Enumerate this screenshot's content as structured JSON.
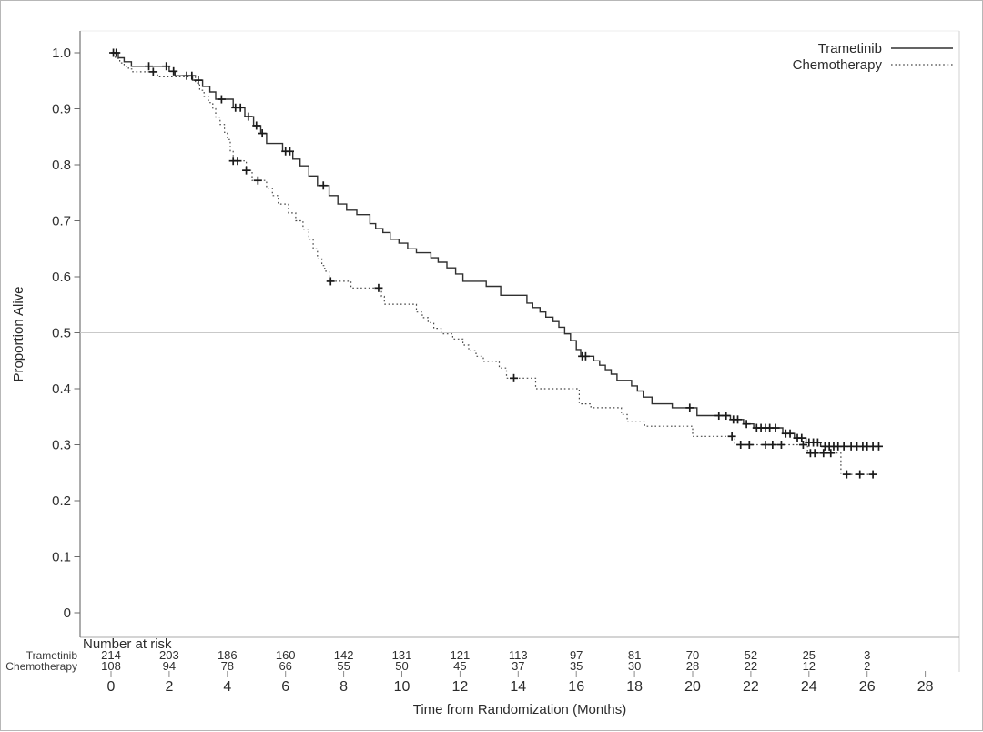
{
  "figure": {
    "y_axis": {
      "title": "Proportion Alive",
      "tick_labels": [
        "1.0",
        "0.9",
        "0.8",
        "0.7",
        "0.6",
        "0.5",
        "0.4",
        "0.3",
        "0.2",
        "0.1",
        "0"
      ]
    },
    "x_axis": {
      "title": "Time from Randomization (Months)",
      "tick_labels": [
        "0",
        "2",
        "4",
        "6",
        "8",
        "10",
        "12",
        "14",
        "16",
        "18",
        "20",
        "22",
        "24",
        "26",
        "28"
      ]
    }
  },
  "legend": {
    "items": [
      {
        "label": "Trametinib",
        "line_style": "solid"
      },
      {
        "label": "Chemotherapy",
        "line_style": "dotted"
      }
    ]
  },
  "risk_table": {
    "title": "Number at risk",
    "time_points": [
      0,
      2,
      4,
      6,
      8,
      10,
      12,
      14,
      16,
      18,
      20,
      22,
      24,
      26
    ],
    "rows": [
      {
        "label": "Trametinib",
        "values": [
          214,
          203,
          186,
          160,
          142,
          131,
          121,
          113,
          97,
          81,
          70,
          52,
          25,
          3
        ]
      },
      {
        "label": "Chemotherapy",
        "values": [
          108,
          94,
          78,
          66,
          55,
          50,
          45,
          37,
          35,
          30,
          28,
          22,
          12,
          2
        ]
      }
    ]
  },
  "colors": {
    "trametinib_line": "#303030",
    "chemotherapy_line": "#474747",
    "censor_mark": "#1a1a1a",
    "reference_line": "#c9c9c9",
    "axis_line": "#5a5a5a",
    "border_line": "#d2d2d2",
    "tick_line": "#8a8a8a"
  },
  "chart_data": {
    "type": "line",
    "subtype": "kaplan_meier_step",
    "title": "",
    "xlabel": "Time from Randomization (Months)",
    "ylabel": "Proportion Alive",
    "xlim": [
      0,
      28
    ],
    "ylim": [
      0,
      1.0
    ],
    "x_ticks": [
      0,
      2,
      4,
      6,
      8,
      10,
      12,
      14,
      16,
      18,
      20,
      22,
      24,
      26,
      28
    ],
    "y_ticks": [
      1.0,
      0.9,
      0.8,
      0.7,
      0.6,
      0.5,
      0.4,
      0.3,
      0.2,
      0.1,
      0
    ],
    "grid": false,
    "legend_position": "top-right",
    "reference_line_y": 0.5,
    "series": [
      {
        "name": "Trametinib",
        "line": "solid",
        "start": [
          0,
          1.0
        ],
        "steps": [
          [
            0.25,
            0.991
          ],
          [
            0.45,
            0.984
          ],
          [
            0.7,
            0.976
          ],
          [
            2.0,
            0.967
          ],
          [
            2.2,
            0.959
          ],
          [
            2.8,
            0.951
          ],
          [
            3.15,
            0.94
          ],
          [
            3.4,
            0.93
          ],
          [
            3.6,
            0.917
          ],
          [
            4.2,
            0.902
          ],
          [
            4.6,
            0.886
          ],
          [
            4.9,
            0.87
          ],
          [
            5.15,
            0.856
          ],
          [
            5.35,
            0.838
          ],
          [
            5.9,
            0.824
          ],
          [
            6.25,
            0.81
          ],
          [
            6.5,
            0.798
          ],
          [
            6.8,
            0.78
          ],
          [
            7.1,
            0.763
          ],
          [
            7.5,
            0.745
          ],
          [
            7.8,
            0.73
          ],
          [
            8.1,
            0.719
          ],
          [
            8.45,
            0.711
          ],
          [
            8.9,
            0.695
          ],
          [
            9.1,
            0.686
          ],
          [
            9.35,
            0.679
          ],
          [
            9.6,
            0.667
          ],
          [
            9.9,
            0.66
          ],
          [
            10.2,
            0.65
          ],
          [
            10.5,
            0.643
          ],
          [
            11.0,
            0.634
          ],
          [
            11.25,
            0.626
          ],
          [
            11.55,
            0.616
          ],
          [
            11.85,
            0.605
          ],
          [
            12.1,
            0.592
          ],
          [
            12.9,
            0.583
          ],
          [
            13.4,
            0.567
          ],
          [
            14.3,
            0.553
          ],
          [
            14.5,
            0.545
          ],
          [
            14.75,
            0.537
          ],
          [
            14.95,
            0.528
          ],
          [
            15.2,
            0.52
          ],
          [
            15.4,
            0.51
          ],
          [
            15.6,
            0.498
          ],
          [
            15.8,
            0.486
          ],
          [
            16.0,
            0.47
          ],
          [
            16.15,
            0.458
          ],
          [
            16.6,
            0.45
          ],
          [
            16.8,
            0.442
          ],
          [
            17.0,
            0.434
          ],
          [
            17.2,
            0.426
          ],
          [
            17.4,
            0.415
          ],
          [
            17.9,
            0.405
          ],
          [
            18.1,
            0.396
          ],
          [
            18.3,
            0.385
          ],
          [
            18.6,
            0.373
          ],
          [
            19.3,
            0.366
          ],
          [
            20.15,
            0.352
          ],
          [
            21.3,
            0.345
          ],
          [
            21.75,
            0.337
          ],
          [
            22.1,
            0.33
          ],
          [
            23.1,
            0.32
          ],
          [
            23.5,
            0.312
          ],
          [
            23.9,
            0.304
          ],
          [
            24.4,
            0.297
          ]
        ],
        "end_time": 26.45,
        "censor_times": [
          0.08,
          0.18,
          1.3,
          1.9,
          2.15,
          2.6,
          2.78,
          3.0,
          3.8,
          4.28,
          4.45,
          4.72,
          5.0,
          5.2,
          6.0,
          6.15,
          7.3,
          16.2,
          16.32,
          19.9,
          20.9,
          21.15,
          21.4,
          21.55,
          21.85,
          22.2,
          22.35,
          22.5,
          22.65,
          22.85,
          23.2,
          23.35,
          23.6,
          23.75,
          24.0,
          24.15,
          24.3,
          24.55,
          24.7,
          24.85,
          25.0,
          25.2,
          25.45,
          25.65,
          25.85,
          26.0,
          26.2,
          26.4
        ]
      },
      {
        "name": "Chemotherapy",
        "line": "dotted",
        "start": [
          0,
          1.0
        ],
        "steps": [
          [
            0.15,
            0.99
          ],
          [
            0.3,
            0.982
          ],
          [
            0.45,
            0.976
          ],
          [
            0.6,
            0.971
          ],
          [
            0.75,
            0.966
          ],
          [
            1.6,
            0.957
          ],
          [
            2.9,
            0.946
          ],
          [
            3.05,
            0.933
          ],
          [
            3.2,
            0.922
          ],
          [
            3.35,
            0.911
          ],
          [
            3.5,
            0.9
          ],
          [
            3.6,
            0.885
          ],
          [
            3.75,
            0.872
          ],
          [
            3.9,
            0.858
          ],
          [
            4.0,
            0.845
          ],
          [
            4.1,
            0.825
          ],
          [
            4.2,
            0.807
          ],
          [
            4.65,
            0.79
          ],
          [
            4.85,
            0.772
          ],
          [
            5.35,
            0.758
          ],
          [
            5.55,
            0.745
          ],
          [
            5.75,
            0.73
          ],
          [
            6.1,
            0.714
          ],
          [
            6.35,
            0.7
          ],
          [
            6.6,
            0.685
          ],
          [
            6.8,
            0.667
          ],
          [
            6.95,
            0.65
          ],
          [
            7.1,
            0.632
          ],
          [
            7.25,
            0.62
          ],
          [
            7.35,
            0.61
          ],
          [
            7.5,
            0.592
          ],
          [
            8.25,
            0.58
          ],
          [
            9.3,
            0.565
          ],
          [
            9.4,
            0.551
          ],
          [
            10.5,
            0.537
          ],
          [
            10.7,
            0.527
          ],
          [
            10.9,
            0.518
          ],
          [
            11.1,
            0.508
          ],
          [
            11.35,
            0.498
          ],
          [
            11.75,
            0.489
          ],
          [
            12.1,
            0.478
          ],
          [
            12.3,
            0.468
          ],
          [
            12.55,
            0.458
          ],
          [
            12.8,
            0.449
          ],
          [
            13.35,
            0.437
          ],
          [
            13.6,
            0.419
          ],
          [
            14.6,
            0.4
          ],
          [
            16.1,
            0.373
          ],
          [
            16.5,
            0.366
          ],
          [
            17.55,
            0.354
          ],
          [
            17.75,
            0.341
          ],
          [
            18.35,
            0.333
          ],
          [
            20.0,
            0.315
          ],
          [
            21.45,
            0.3
          ],
          [
            23.95,
            0.285
          ],
          [
            25.1,
            0.247
          ]
        ],
        "end_time": 26.35,
        "censor_times": [
          1.45,
          4.2,
          4.35,
          4.65,
          5.05,
          7.55,
          9.2,
          13.85,
          21.35,
          21.65,
          21.95,
          22.5,
          22.75,
          23.05,
          23.8,
          24.05,
          24.2,
          24.5,
          24.75,
          25.3,
          25.75,
          26.2
        ]
      }
    ]
  }
}
